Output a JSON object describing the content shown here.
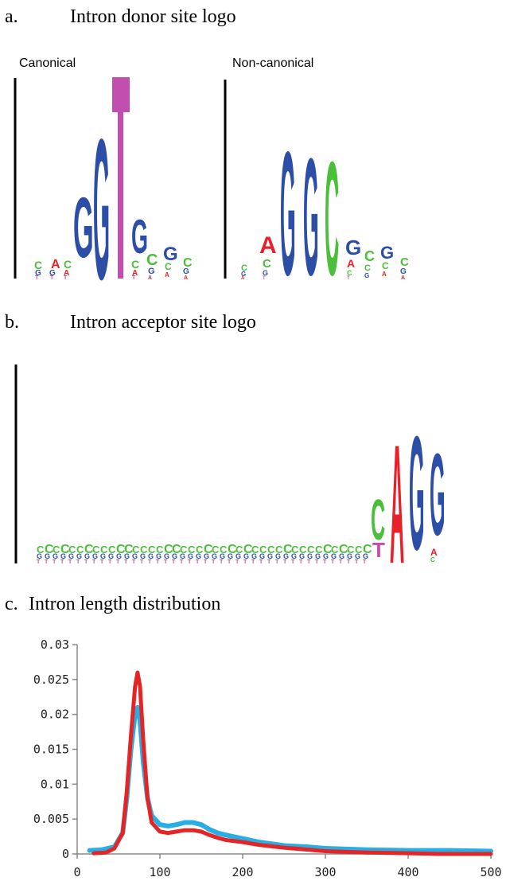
{
  "panel_a": {
    "heading_letter": "a.",
    "heading_title": "Intron donor site logo",
    "left_label": "Canonical",
    "right_label": "Non-canonical",
    "colors": {
      "A": "#e8202a",
      "C": "#4cbf3a",
      "G": "#2c4ea6",
      "T": "#c24fb0"
    }
  },
  "panel_b": {
    "heading_letter": "b.",
    "heading_title": "Intron acceptor site logo"
  },
  "panel_c": {
    "heading_letter": "c.",
    "heading_title": "Intron length distribution"
  },
  "chart_data": {
    "type": "line",
    "title": "",
    "xlabel": "",
    "ylabel": "",
    "xlim": [
      0,
      500
    ],
    "ylim": [
      0,
      0.03
    ],
    "x_ticks": [
      "0",
      "100",
      "200",
      "300",
      "400",
      "500"
    ],
    "y_ticks": [
      "0",
      "0.005",
      "0.01",
      "0.015",
      "0.02",
      "0.025",
      "0.03"
    ],
    "grid": false,
    "series": [
      {
        "color": "#29aee3",
        "x": [
          15,
          30,
          45,
          55,
          60,
          65,
          70,
          73,
          76,
          80,
          85,
          90,
          100,
          110,
          120,
          130,
          140,
          150,
          160,
          170,
          180,
          200,
          220,
          250,
          280,
          300,
          350,
          400,
          450,
          500
        ],
        "y": [
          0.0005,
          0.0006,
          0.001,
          0.003,
          0.008,
          0.015,
          0.02,
          0.021,
          0.019,
          0.013,
          0.008,
          0.0055,
          0.0042,
          0.004,
          0.0042,
          0.0045,
          0.0045,
          0.0042,
          0.0035,
          0.003,
          0.0027,
          0.0022,
          0.0017,
          0.0012,
          0.001,
          0.0008,
          0.0006,
          0.0005,
          0.0005,
          0.0004
        ]
      },
      {
        "color": "#e52525",
        "x": [
          20,
          35,
          45,
          55,
          60,
          65,
          70,
          73,
          76,
          80,
          85,
          90,
          100,
          110,
          120,
          130,
          140,
          150,
          160,
          170,
          180,
          200,
          220,
          250,
          280,
          300,
          350,
          400,
          440,
          500
        ],
        "y": [
          0.0001,
          0.0002,
          0.0008,
          0.003,
          0.009,
          0.017,
          0.024,
          0.026,
          0.024,
          0.016,
          0.008,
          0.0045,
          0.0032,
          0.003,
          0.0032,
          0.0034,
          0.0034,
          0.0032,
          0.0027,
          0.0023,
          0.002,
          0.0017,
          0.0013,
          0.0009,
          0.0006,
          0.0004,
          0.0002,
          0.0001,
          0.0,
          0.0
        ]
      }
    ]
  }
}
